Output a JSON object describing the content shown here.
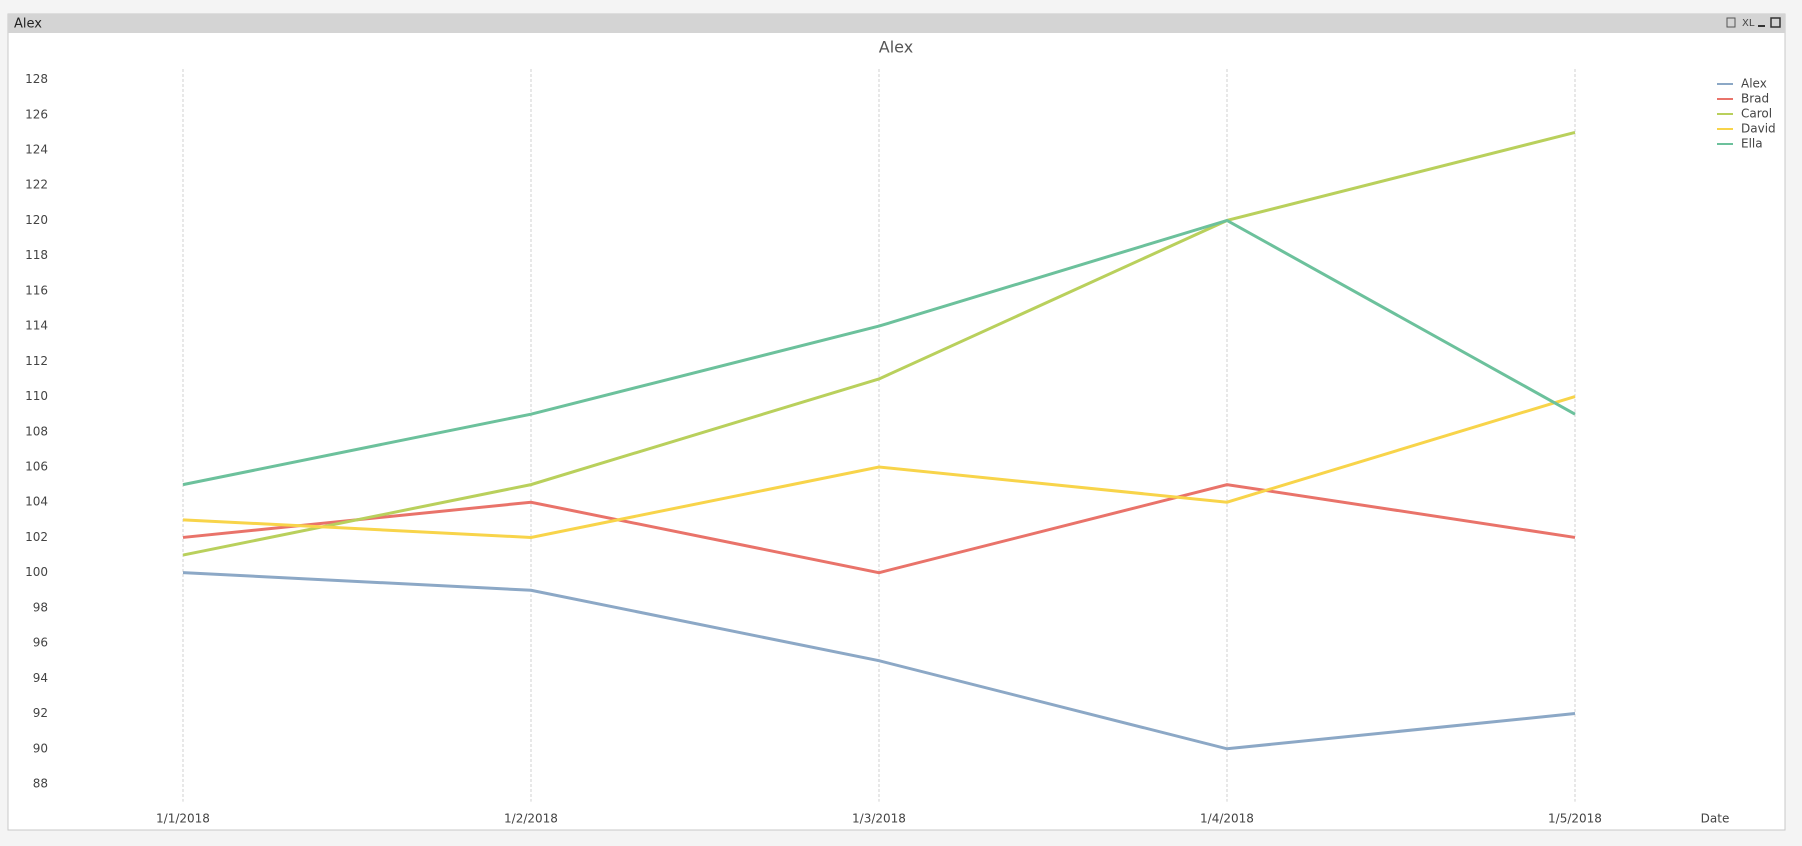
{
  "window_title": "Alex",
  "xl_button": "XL",
  "chart_data": {
    "type": "line",
    "title": "Alex",
    "x_label": "Date",
    "categories": [
      "1/1/2018",
      "1/2/2018",
      "1/3/2018",
      "1/4/2018",
      "1/5/2018"
    ],
    "series": [
      {
        "name": "Alex",
        "color": "#8ca8c6",
        "values": [
          100,
          99,
          95,
          90,
          92
        ]
      },
      {
        "name": "Brad",
        "color": "#e9736a",
        "values": [
          102,
          104,
          100,
          105,
          102
        ]
      },
      {
        "name": "Carol",
        "color": "#b9d05c",
        "values": [
          101,
          105,
          111,
          120,
          125
        ]
      },
      {
        "name": "David",
        "color": "#f8d44a",
        "values": [
          103,
          102,
          106,
          104,
          110
        ]
      },
      {
        "name": "Ella",
        "color": "#6cc19c",
        "values": [
          105,
          109,
          114,
          120,
          109
        ]
      }
    ],
    "ylim": [
      87,
      128.6
    ],
    "yticks": [
      88,
      90,
      92,
      94,
      96,
      98,
      100,
      102,
      104,
      106,
      108,
      110,
      112,
      114,
      116,
      118,
      120,
      122,
      124,
      126,
      128
    ],
    "grid": true,
    "legend": "top-right"
  }
}
